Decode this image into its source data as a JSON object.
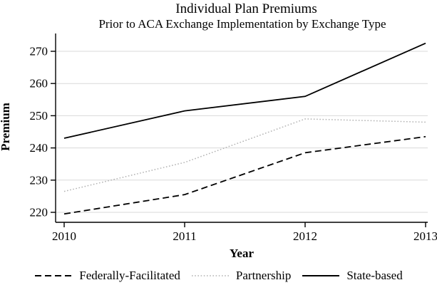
{
  "header": {
    "title": "Individual Plan Premiums",
    "subtitle": "Prior to ACA Exchange Implementation by Exchange Type"
  },
  "chart_data": {
    "type": "line",
    "title": "Individual Plan Premiums",
    "subtitle": "Prior to ACA Exchange Implementation by Exchange Type",
    "xlabel": "Year",
    "ylabel": "Premium",
    "x": [
      2010,
      2011,
      2012,
      2013
    ],
    "xticks": [
      "2010",
      "2011",
      "2012",
      "2013"
    ],
    "yticks": [
      220,
      230,
      240,
      250,
      260,
      270
    ],
    "ylim": [
      216.5,
      275.5
    ],
    "xlim": [
      2009.93,
      2013.02
    ],
    "grid": "horizontal",
    "legend_position": "bottom",
    "series": [
      {
        "name": "Federally-Facilitated",
        "style": "dashed",
        "color": "#000000",
        "values": [
          219.5,
          225.5,
          238.5,
          243.5
        ]
      },
      {
        "name": "Partnership",
        "style": "dotted",
        "color": "#b3b3b3",
        "values": [
          226.5,
          235.5,
          249,
          248
        ]
      },
      {
        "name": "State-based",
        "style": "solid",
        "color": "#000000",
        "values": [
          243,
          251.5,
          256,
          272.5
        ]
      }
    ],
    "colors": {
      "axis": "#000000",
      "gridline": "#d9d9d9",
      "background": "#ffffff",
      "text": "#000000"
    }
  }
}
